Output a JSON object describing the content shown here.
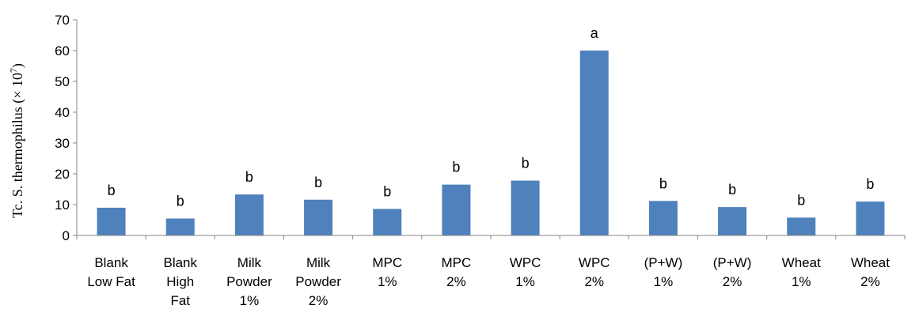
{
  "chart_data": {
    "type": "bar",
    "title": "",
    "xlabel": "",
    "ylabel": "Tc. S. thermophilus (× 10",
    "ylabel_exponent": "7",
    "ylabel_close": ")",
    "ylim": [
      0,
      70
    ],
    "yticks": [
      "0",
      "10",
      "20",
      "30",
      "40",
      "50",
      "60",
      "70"
    ],
    "grid": false,
    "legend": "none",
    "bar_color": "#4f81bd",
    "categories": [
      [
        "Blank",
        "Low Fat"
      ],
      [
        "Blank",
        "High",
        "Fat"
      ],
      [
        "Milk",
        "Powder",
        "1%"
      ],
      [
        "Milk",
        "Powder",
        "2%"
      ],
      [
        "MPC",
        "1%"
      ],
      [
        "MPC",
        "2%"
      ],
      [
        "WPC",
        "1%"
      ],
      [
        "WPC",
        "2%"
      ],
      [
        "(P+W)",
        "1%"
      ],
      [
        "(P+W)",
        "2%"
      ],
      [
        "Wheat",
        "1%"
      ],
      [
        "Wheat",
        "2%"
      ]
    ],
    "values": [
      9,
      5.5,
      13.3,
      11.6,
      8.6,
      16.5,
      17.8,
      60,
      11.2,
      9.2,
      5.8,
      11
    ],
    "annotations": [
      "b",
      "b",
      "b",
      "b",
      "b",
      "b",
      "b",
      "a",
      "b",
      "b",
      "b",
      "b"
    ]
  }
}
